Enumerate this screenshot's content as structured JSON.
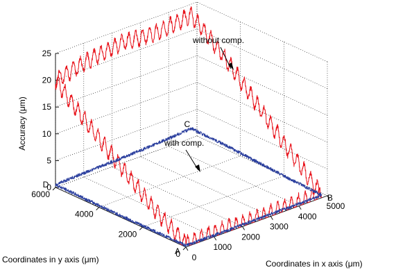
{
  "chart_data": {
    "type": "line",
    "projection": "3d",
    "zlabel": "Accuracy (μm)",
    "xlabel": "Coordinates in x axis (μm)",
    "ylabel": "Coordinates in y axis (μm)",
    "xlim": [
      0,
      5000
    ],
    "ylim": [
      0,
      6000
    ],
    "zlim": [
      0,
      25
    ],
    "x_ticks": [
      "0",
      "1000",
      "2000",
      "3000",
      "4000",
      "5000"
    ],
    "y_ticks": [
      "0",
      "2000",
      "4000",
      "6000"
    ],
    "z_ticks": [
      "0",
      "5",
      "10",
      "15",
      "20",
      "25"
    ],
    "grid": true,
    "corner_labels": [
      {
        "label": "A",
        "x": 0,
        "y": 0
      },
      {
        "label": "B",
        "x": 4800,
        "y": 0
      },
      {
        "label": "C",
        "x": 4800,
        "y": 6000
      },
      {
        "label": "D",
        "x": 0,
        "y": 6000
      }
    ],
    "series": [
      {
        "color": "#e8141c",
        "annotation": "without comp.",
        "path_xyz": [
          [
            0,
            0,
            0.5
          ],
          [
            1200,
            0,
            0.8
          ],
          [
            2400,
            0,
            0.5
          ],
          [
            3600,
            0,
            0.8
          ],
          [
            4800,
            0,
            0.5
          ],
          [
            4800,
            1500,
            6
          ],
          [
            4800,
            3000,
            12
          ],
          [
            4800,
            4500,
            18
          ],
          [
            4800,
            6000,
            23
          ],
          [
            3600,
            6000,
            22
          ],
          [
            2400,
            6000,
            22.5
          ],
          [
            1200,
            6000,
            21.5
          ],
          [
            0,
            6000,
            20
          ],
          [
            0,
            4500,
            14.5
          ],
          [
            0,
            3000,
            9.5
          ],
          [
            0,
            1500,
            4.5
          ],
          [
            0,
            0,
            0.5
          ]
        ]
      },
      {
        "color": "#2b3f9e",
        "annotation": "with comp.",
        "path_xyz": [
          [
            0,
            0,
            0.3
          ],
          [
            1200,
            0,
            0.3
          ],
          [
            2400,
            0,
            0.4
          ],
          [
            3600,
            0,
            0.4
          ],
          [
            4800,
            0,
            0.5
          ],
          [
            4800,
            1500,
            0.8
          ],
          [
            4800,
            3000,
            1.2
          ],
          [
            4800,
            4500,
            1.6
          ],
          [
            4800,
            6000,
            1.8
          ],
          [
            3600,
            6000,
            1.3
          ],
          [
            2400,
            6000,
            1.0
          ],
          [
            1200,
            6000,
            0.8
          ],
          [
            0,
            6000,
            0.5
          ],
          [
            0,
            4500,
            0.4
          ],
          [
            0,
            3000,
            0.3
          ],
          [
            0,
            1500,
            0.3
          ],
          [
            0,
            0,
            0.3
          ]
        ]
      }
    ]
  },
  "colors": {
    "grid": "#000000",
    "background": "#ffffff"
  }
}
